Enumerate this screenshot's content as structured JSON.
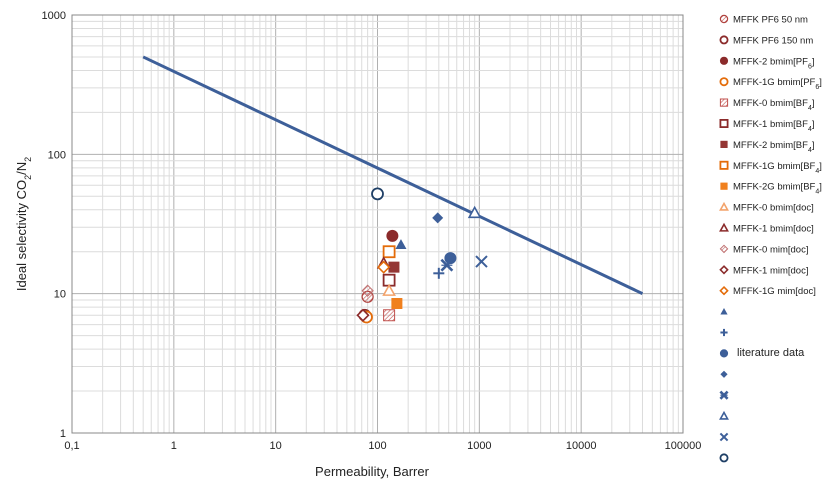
{
  "chart_data": {
    "type": "scatter",
    "x_scale": "log",
    "y_scale": "log",
    "xlim": [
      0.1,
      100000
    ],
    "ylim": [
      1,
      1000
    ],
    "grid": true,
    "xlabel": "Permeability, Barrer",
    "ylabel_main": "Ideal selectivity CO",
    "ylabel_sub1": "2",
    "ylabel_mid": "/N",
    "ylabel_sub2": "2",
    "x_ticks": [
      {
        "value": 0.1,
        "label": "0,1"
      },
      {
        "value": 1,
        "label": "1"
      },
      {
        "value": 10,
        "label": "10"
      },
      {
        "value": 100,
        "label": "100"
      },
      {
        "value": 1000,
        "label": "1000"
      },
      {
        "value": 10000,
        "label": "10000"
      },
      {
        "value": 100000,
        "label": "100000"
      }
    ],
    "y_ticks": [
      {
        "value": 1,
        "label": "1"
      },
      {
        "value": 10,
        "label": "10"
      },
      {
        "value": 100,
        "label": "100"
      },
      {
        "value": 1000,
        "label": "1000"
      }
    ],
    "upper_bound_line": {
      "x": [
        0.5,
        40000
      ],
      "y": [
        500,
        10
      ],
      "color": "#3d5f99"
    },
    "series": [
      {
        "name": "MFFK PF6 50 nm",
        "name_sub": "",
        "name_tail": "",
        "marker": "circle-hatch",
        "color": "#b0433f",
        "points": [
          [
            80,
            9.5
          ]
        ]
      },
      {
        "name": "MFFK PF6 150 nm",
        "name_sub": "",
        "name_tail": "",
        "marker": "circle-open",
        "color": "#8b2b2b",
        "points": [
          [
            75,
            7
          ]
        ]
      },
      {
        "name": "MFFK-2 bmim[PF",
        "name_sub": "6",
        "name_tail": "]",
        "marker": "circle-filled",
        "color": "#8b2b2b",
        "points": [
          [
            140,
            26
          ]
        ]
      },
      {
        "name": "MFFK-1G bmim[PF",
        "name_sub": "6",
        "name_tail": "]",
        "marker": "circle-open",
        "color": "#e46c0a",
        "points": [
          [
            78,
            6.8
          ]
        ]
      },
      {
        "name": "MFFK-0 bmim[BF",
        "name_sub": "4",
        "name_tail": "]",
        "marker": "square-hatch",
        "color": "#c0504d",
        "points": [
          [
            130,
            7
          ]
        ]
      },
      {
        "name": "MFFK-1 bmim[BF",
        "name_sub": "4",
        "name_tail": "]",
        "marker": "square-open",
        "color": "#8b2b2b",
        "points": [
          [
            130,
            12.5
          ]
        ]
      },
      {
        "name": "MFFK-2 bmim[BF",
        "name_sub": "4",
        "name_tail": "]",
        "marker": "square-filled",
        "color": "#943634",
        "points": [
          [
            145,
            15.5
          ]
        ]
      },
      {
        "name": "MFFK-1G bmim[BF",
        "name_sub": "4",
        "name_tail": "]",
        "marker": "square-open",
        "color": "#e46c0a",
        "points": [
          [
            130,
            20
          ]
        ]
      },
      {
        "name": "MFFK-2G bmim[BF",
        "name_sub": "4",
        "name_tail": "]",
        "marker": "square-filled",
        "color": "#f0801e",
        "points": [
          [
            155,
            8.5
          ]
        ]
      },
      {
        "name": "MFFK-0 bmim[doc]",
        "name_sub": "",
        "name_tail": "",
        "marker": "triangle-open",
        "color": "#f3a36b",
        "points": [
          [
            130,
            10.5
          ]
        ]
      },
      {
        "name": "MFFK-1 bmim[doc]",
        "name_sub": "",
        "name_tail": "",
        "marker": "triangle-open",
        "color": "#8b2b2b",
        "points": [
          [
            115,
            16.5
          ]
        ]
      },
      {
        "name": "MFFK-0 mim[doc]",
        "name_sub": "",
        "name_tail": "",
        "marker": "diamond-hatch",
        "color": "#c07070",
        "points": [
          [
            80,
            10.5
          ]
        ]
      },
      {
        "name": "MFFK-1 mim[doc]",
        "name_sub": "",
        "name_tail": "",
        "marker": "diamond-open",
        "color": "#8b2b2b",
        "points": [
          [
            72,
            7
          ]
        ]
      },
      {
        "name": "MFFK-1G mim[doc]",
        "name_sub": "",
        "name_tail": "",
        "marker": "diamond-open",
        "color": "#e46c0a",
        "points": [
          [
            115,
            15.5
          ]
        ]
      },
      {
        "name": "",
        "marker": "triangle-filled",
        "color": "#3d5f99",
        "points": [
          [
            170,
            22.5
          ]
        ]
      },
      {
        "name": "",
        "marker": "plus",
        "color": "#3d5f99",
        "points": [
          [
            400,
            14
          ]
        ]
      },
      {
        "name": "",
        "marker": "circle-filled",
        "color": "#3d5f99",
        "points": [
          [
            520,
            18
          ]
        ]
      },
      {
        "name": "",
        "marker": "diamond-filled",
        "color": "#3d5f99",
        "points": [
          [
            390,
            35
          ]
        ]
      },
      {
        "name": "",
        "marker": "x-bold",
        "color": "#3d5f99",
        "points": [
          [
            480,
            16
          ]
        ]
      },
      {
        "name": "",
        "marker": "triangle-open",
        "color": "#3d5f99",
        "points": [
          [
            900,
            38
          ]
        ]
      },
      {
        "name": "",
        "marker": "x",
        "color": "#3d5f99",
        "points": [
          [
            1050,
            17
          ]
        ]
      },
      {
        "name": "",
        "marker": "circle-open",
        "color": "#1f3f66",
        "points": [
          [
            100,
            52
          ]
        ]
      }
    ],
    "legend_group_label": "literature data",
    "legend_placement": "right"
  }
}
